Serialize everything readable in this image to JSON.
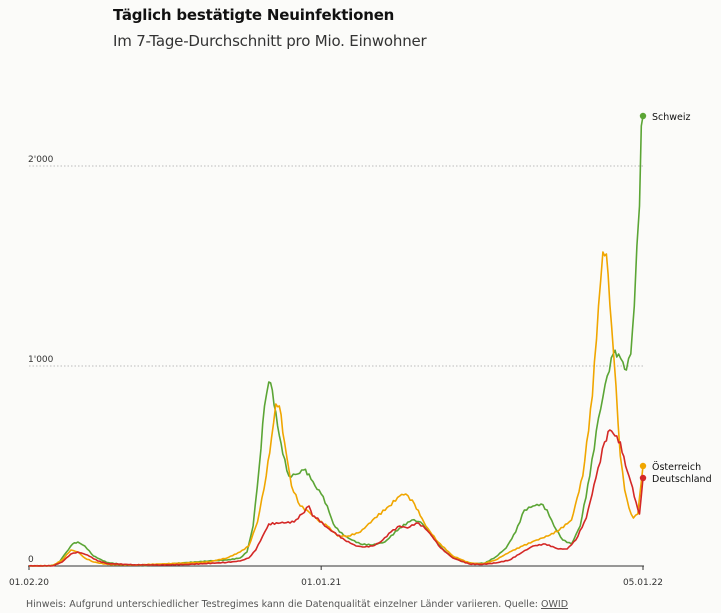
{
  "chart_data": {
    "type": "line",
    "title": "Täglich bestätigte Neuinfektionen",
    "subtitle": "Im 7-Tage-Durchschnitt pro Mio. Einwohner",
    "ylim": [
      0,
      2000
    ],
    "y_ticks": [
      {
        "value": 0,
        "label": "0"
      },
      {
        "value": 1000,
        "label": "1'000"
      },
      {
        "value": 2000,
        "label": "2'000"
      }
    ],
    "x_ticks": [
      {
        "date": "2020-02-01",
        "label": "01.02.20"
      },
      {
        "date": "2021-01-01",
        "label": "01.01.21"
      },
      {
        "date": "2022-01-05",
        "label": "05.01.22"
      }
    ],
    "x_range": [
      "2020-02-01",
      "2022-01-05"
    ],
    "grid": "horizontal dotted",
    "legend": "end-of-line labels",
    "series": [
      {
        "name": "Schweiz",
        "color": "#5ba535",
        "points": [
          [
            "2020-02-01",
            0
          ],
          [
            "2020-02-25",
            0
          ],
          [
            "2020-03-05",
            10
          ],
          [
            "2020-03-15",
            70
          ],
          [
            "2020-03-22",
            110
          ],
          [
            "2020-03-28",
            120
          ],
          [
            "2020-04-05",
            100
          ],
          [
            "2020-04-15",
            50
          ],
          [
            "2020-04-30",
            18
          ],
          [
            "2020-05-20",
            6
          ],
          [
            "2020-06-15",
            3
          ],
          [
            "2020-07-10",
            10
          ],
          [
            "2020-07-31",
            17
          ],
          [
            "2020-08-25",
            25
          ],
          [
            "2020-09-15",
            30
          ],
          [
            "2020-09-30",
            40
          ],
          [
            "2020-10-08",
            70
          ],
          [
            "2020-10-15",
            200
          ],
          [
            "2020-10-22",
            500
          ],
          [
            "2020-10-28",
            800
          ],
          [
            "2020-11-02",
            920
          ],
          [
            "2020-11-06",
            880
          ],
          [
            "2020-11-12",
            700
          ],
          [
            "2020-11-18",
            560
          ],
          [
            "2020-11-25",
            450
          ],
          [
            "2020-12-05",
            460
          ],
          [
            "2020-12-12",
            480
          ],
          [
            "2020-12-18",
            460
          ],
          [
            "2020-12-25",
            400
          ],
          [
            "2021-01-01",
            360
          ],
          [
            "2021-01-08",
            300
          ],
          [
            "2021-01-15",
            210
          ],
          [
            "2021-01-22",
            170
          ],
          [
            "2021-02-01",
            140
          ],
          [
            "2021-02-15",
            110
          ],
          [
            "2021-03-01",
            105
          ],
          [
            "2021-03-15",
            120
          ],
          [
            "2021-04-01",
            190
          ],
          [
            "2021-04-15",
            230
          ],
          [
            "2021-04-25",
            220
          ],
          [
            "2021-05-05",
            170
          ],
          [
            "2021-05-15",
            110
          ],
          [
            "2021-05-25",
            65
          ],
          [
            "2021-06-10",
            25
          ],
          [
            "2021-06-25",
            12
          ],
          [
            "2021-07-08",
            15
          ],
          [
            "2021-07-20",
            45
          ],
          [
            "2021-08-01",
            90
          ],
          [
            "2021-08-12",
            170
          ],
          [
            "2021-08-22",
            280
          ],
          [
            "2021-09-01",
            300
          ],
          [
            "2021-09-10",
            310
          ],
          [
            "2021-09-17",
            280
          ],
          [
            "2021-09-25",
            200
          ],
          [
            "2021-10-05",
            130
          ],
          [
            "2021-10-15",
            110
          ],
          [
            "2021-10-25",
            200
          ],
          [
            "2021-11-05",
            450
          ],
          [
            "2021-11-15",
            740
          ],
          [
            "2021-11-25",
            950
          ],
          [
            "2021-12-02",
            1060
          ],
          [
            "2021-12-08",
            1060
          ],
          [
            "2021-12-13",
            1020
          ],
          [
            "2021-12-17",
            980
          ],
          [
            "2021-12-22",
            1060
          ],
          [
            "2021-12-26",
            1300
          ],
          [
            "2021-12-29",
            1600
          ],
          [
            "2022-01-01",
            1800
          ],
          [
            "2022-01-03",
            2200
          ],
          [
            "2022-01-05",
            2250
          ]
        ]
      },
      {
        "name": "Österreich",
        "color": "#f0a600",
        "points": [
          [
            "2020-02-01",
            0
          ],
          [
            "2020-02-28",
            2
          ],
          [
            "2020-03-10",
            30
          ],
          [
            "2020-03-20",
            80
          ],
          [
            "2020-03-28",
            70
          ],
          [
            "2020-04-05",
            40
          ],
          [
            "2020-04-15",
            20
          ],
          [
            "2020-05-01",
            8
          ],
          [
            "2020-06-01",
            5
          ],
          [
            "2020-07-01",
            10
          ],
          [
            "2020-07-31",
            15
          ],
          [
            "2020-08-25",
            20
          ],
          [
            "2020-09-15",
            40
          ],
          [
            "2020-09-30",
            70
          ],
          [
            "2020-10-10",
            100
          ],
          [
            "2020-10-20",
            220
          ],
          [
            "2020-10-30",
            450
          ],
          [
            "2020-11-05",
            640
          ],
          [
            "2020-11-10",
            810
          ],
          [
            "2020-11-14",
            800
          ],
          [
            "2020-11-20",
            620
          ],
          [
            "2020-11-28",
            400
          ],
          [
            "2020-12-08",
            300
          ],
          [
            "2020-12-18",
            270
          ],
          [
            "2020-12-28",
            230
          ],
          [
            "2021-01-08",
            200
          ],
          [
            "2021-01-20",
            150
          ],
          [
            "2021-02-01",
            150
          ],
          [
            "2021-02-15",
            170
          ],
          [
            "2021-03-01",
            230
          ],
          [
            "2021-03-20",
            300
          ],
          [
            "2021-04-01",
            350
          ],
          [
            "2021-04-08",
            360
          ],
          [
            "2021-04-18",
            310
          ],
          [
            "2021-05-01",
            200
          ],
          [
            "2021-05-15",
            120
          ],
          [
            "2021-06-01",
            50
          ],
          [
            "2021-06-20",
            15
          ],
          [
            "2021-07-05",
            10
          ],
          [
            "2021-07-20",
            30
          ],
          [
            "2021-08-05",
            70
          ],
          [
            "2021-08-20",
            100
          ],
          [
            "2021-09-05",
            130
          ],
          [
            "2021-09-18",
            150
          ],
          [
            "2021-10-01",
            180
          ],
          [
            "2021-10-15",
            230
          ],
          [
            "2021-10-28",
            450
          ],
          [
            "2021-11-08",
            850
          ],
          [
            "2021-11-15",
            1300
          ],
          [
            "2021-11-20",
            1570
          ],
          [
            "2021-11-24",
            1560
          ],
          [
            "2021-11-30",
            1200
          ],
          [
            "2021-12-05",
            900
          ],
          [
            "2021-12-10",
            550
          ],
          [
            "2021-12-15",
            380
          ],
          [
            "2021-12-20",
            290
          ],
          [
            "2021-12-25",
            240
          ],
          [
            "2021-12-30",
            260
          ],
          [
            "2022-01-03",
            420
          ],
          [
            "2022-01-05",
            500
          ]
        ]
      },
      {
        "name": "Deutschland",
        "color": "#d42826",
        "points": [
          [
            "2020-02-01",
            0
          ],
          [
            "2020-02-28",
            1
          ],
          [
            "2020-03-10",
            20
          ],
          [
            "2020-03-20",
            60
          ],
          [
            "2020-03-28",
            70
          ],
          [
            "2020-04-08",
            55
          ],
          [
            "2020-04-20",
            25
          ],
          [
            "2020-05-01",
            12
          ],
          [
            "2020-06-01",
            6
          ],
          [
            "2020-07-01",
            5
          ],
          [
            "2020-07-31",
            8
          ],
          [
            "2020-08-20",
            12
          ],
          [
            "2020-09-15",
            18
          ],
          [
            "2020-09-30",
            25
          ],
          [
            "2020-10-10",
            40
          ],
          [
            "2020-10-18",
            80
          ],
          [
            "2020-10-26",
            150
          ],
          [
            "2020-11-02",
            210
          ],
          [
            "2020-11-15",
            215
          ],
          [
            "2020-12-01",
            220
          ],
          [
            "2020-12-10",
            260
          ],
          [
            "2020-12-18",
            300
          ],
          [
            "2020-12-22",
            250
          ],
          [
            "2020-12-28",
            240
          ],
          [
            "2021-01-05",
            200
          ],
          [
            "2021-01-15",
            170
          ],
          [
            "2021-01-28",
            130
          ],
          [
            "2021-02-10",
            100
          ],
          [
            "2021-02-20",
            95
          ],
          [
            "2021-03-01",
            100
          ],
          [
            "2021-03-10",
            120
          ],
          [
            "2021-03-22",
            170
          ],
          [
            "2021-04-01",
            200
          ],
          [
            "2021-04-10",
            190
          ],
          [
            "2021-04-20",
            215
          ],
          [
            "2021-04-28",
            200
          ],
          [
            "2021-05-08",
            150
          ],
          [
            "2021-05-18",
            90
          ],
          [
            "2021-06-01",
            40
          ],
          [
            "2021-06-20",
            10
          ],
          [
            "2021-07-05",
            8
          ],
          [
            "2021-07-20",
            15
          ],
          [
            "2021-08-05",
            30
          ],
          [
            "2021-08-20",
            70
          ],
          [
            "2021-09-01",
            100
          ],
          [
            "2021-09-15",
            110
          ],
          [
            "2021-09-30",
            85
          ],
          [
            "2021-10-10",
            85
          ],
          [
            "2021-10-20",
            130
          ],
          [
            "2021-11-01",
            240
          ],
          [
            "2021-11-12",
            440
          ],
          [
            "2021-11-22",
            620
          ],
          [
            "2021-11-28",
            680
          ],
          [
            "2021-12-04",
            650
          ],
          [
            "2021-12-10",
            620
          ],
          [
            "2021-12-16",
            500
          ],
          [
            "2021-12-22",
            420
          ],
          [
            "2021-12-28",
            320
          ],
          [
            "2022-01-01",
            260
          ],
          [
            "2022-01-03",
            350
          ],
          [
            "2022-01-05",
            440
          ]
        ]
      }
    ]
  },
  "footnote": {
    "text": "Hinweis: Aufgrund unterschiedlicher Testregimes kann die Datenqualität einzelner Länder variieren. Quelle: ",
    "source_link": "OWID"
  }
}
